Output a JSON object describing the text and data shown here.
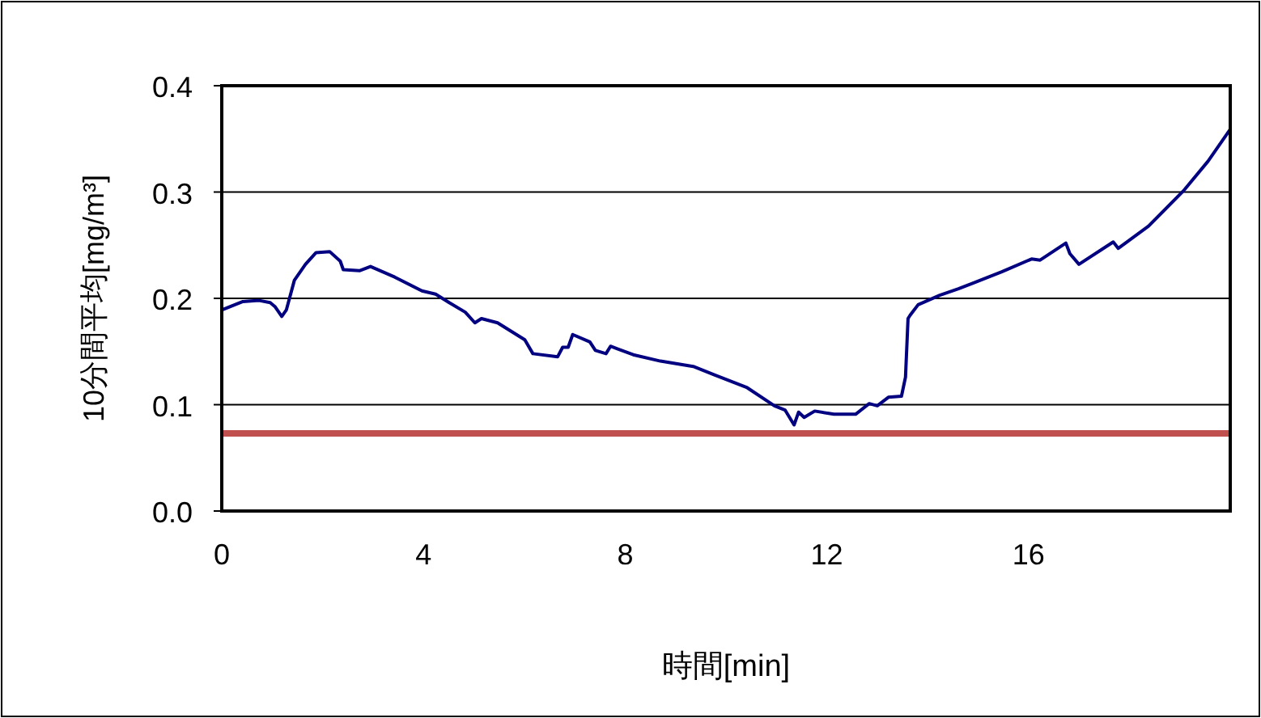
{
  "chart_data": {
    "type": "line",
    "xlabel": "時間[min]",
    "ylabel": "10分間平均[mg/m³]",
    "xlim": [
      0,
      20
    ],
    "xticks": [
      0,
      4,
      8,
      12,
      16
    ],
    "ylim": [
      0,
      0.4
    ],
    "yticks": [
      {
        "value": 0,
        "label": "0.0"
      },
      0.1,
      0.2,
      0.3,
      0.4
    ],
    "grid": "y",
    "marker": "none",
    "line_style": "solid",
    "series": [
      {
        "color": "#000080",
        "x": [
          0,
          0.42,
          0.74,
          0.96,
          1.06,
          1.19,
          1.28,
          1.44,
          1.66,
          1.87,
          2.14,
          2.35,
          2.41,
          2.73,
          2.95,
          3.43,
          3.97,
          4.24,
          4.51,
          4.83,
          5.02,
          5.15,
          5.47,
          6.01,
          6.17,
          6.66,
          6.76,
          6.87,
          6.96,
          7.3,
          7.41,
          7.62,
          7.71,
          8.16,
          8.7,
          9.35,
          9.77,
          10.42,
          10.96,
          11.17,
          11.35,
          11.44,
          11.55,
          11.76,
          12.14,
          12.57,
          12.84,
          13.0,
          13.22,
          13.48,
          13.56,
          13.61,
          13.65,
          13.81,
          14.24,
          14.61,
          14.88,
          15.47,
          16.06,
          16.23,
          16.74,
          16.82,
          17.0,
          17.68,
          17.78,
          18.38,
          19.07,
          19.56,
          20
        ],
        "values": [
          0.189,
          0.197,
          0.198,
          0.196,
          0.192,
          0.183,
          0.189,
          0.217,
          0.232,
          0.243,
          0.244,
          0.235,
          0.227,
          0.226,
          0.23,
          0.22,
          0.207,
          0.204,
          0.196,
          0.187,
          0.177,
          0.181,
          0.177,
          0.161,
          0.148,
          0.145,
          0.154,
          0.154,
          0.166,
          0.159,
          0.151,
          0.148,
          0.155,
          0.147,
          0.141,
          0.136,
          0.128,
          0.116,
          0.099,
          0.095,
          0.081,
          0.093,
          0.088,
          0.094,
          0.091,
          0.091,
          0.101,
          0.099,
          0.107,
          0.108,
          0.126,
          0.181,
          0.184,
          0.194,
          0.203,
          0.209,
          0.214,
          0.225,
          0.237,
          0.236,
          0.252,
          0.242,
          0.232,
          0.253,
          0.247,
          0.268,
          0.301,
          0.329,
          0.359
        ]
      }
    ],
    "ref_lines": [
      {
        "axis": "y",
        "value": 0.073,
        "color": "#c0504d",
        "line_style": "solid"
      }
    ]
  }
}
